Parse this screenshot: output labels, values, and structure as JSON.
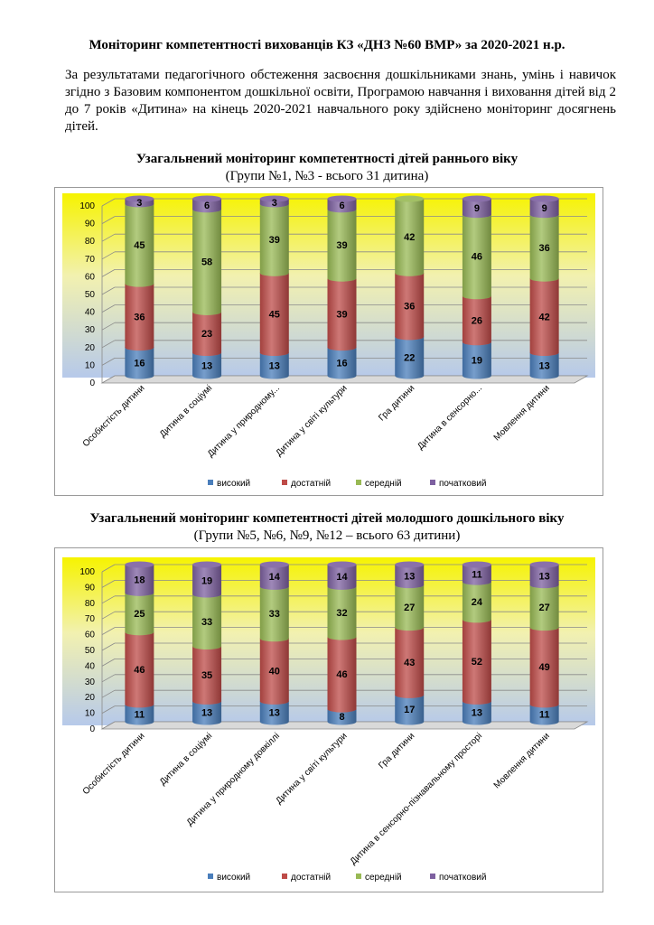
{
  "document": {
    "title": "Моніторинг компетентності  вихованців КЗ «ДНЗ №60 ВМР» за 2020-2021 н.р.",
    "intro": "За результатами педагогічного обстеження засвоєння дошкільниками знань, умінь і навичок згідно з Базовим компонентом дошкільної освіти, Програмою  навчання і виховання дітей від 2 до 7 років «Дитина»  на кінець 2020-2021  навчального року здійснено  моніторинг досягнень дітей."
  },
  "chart_data": [
    {
      "type": "bar",
      "stacked": true,
      "title": "Узагальнений моніторинг компетентності дітей раннього  віку",
      "subtitle": "(Групи №1, №3 - всього 31 дитина)",
      "categories": [
        "Особистість дитини",
        "Дитина в соціумі",
        "Дитина у природному...",
        "Дитина у світі культури",
        "Гра дитини",
        "Дитина в сенсорно...",
        "Мовлення дитини"
      ],
      "series": [
        {
          "name": "високий",
          "color": "#4a7ebb",
          "values": [
            16,
            13,
            13,
            16,
            22,
            19,
            13
          ]
        },
        {
          "name": "достатній",
          "color": "#be4b48",
          "values": [
            36,
            23,
            45,
            39,
            36,
            26,
            42
          ]
        },
        {
          "name": "середній",
          "color": "#98b954",
          "values": [
            45,
            58,
            39,
            39,
            42,
            46,
            36
          ]
        },
        {
          "name": "початковий",
          "color": "#7d60a0",
          "values": [
            3,
            6,
            3,
            6,
            0,
            9,
            9
          ]
        }
      ],
      "ylim": [
        0,
        100
      ],
      "yticks": [
        0,
        10,
        20,
        30,
        40,
        50,
        60,
        70,
        80,
        90,
        100
      ],
      "legend": "bottom"
    },
    {
      "type": "bar",
      "stacked": true,
      "title": "Узагальнений моніторинг компетентності дітей молодшого дошкільного віку",
      "subtitle": "(Групи №5, №6, №9, №12 – всього 63 дитини)",
      "categories": [
        "Особистість дитини",
        "Дитина в соціумі",
        "Дитина у природному довкіллі",
        "Дитина у світі культури",
        "Гра дитини",
        "Дитина в сенсорно-пізнавальному просторі",
        "Мовлення дитини"
      ],
      "series": [
        {
          "name": "високий",
          "color": "#4a7ebb",
          "values": [
            11,
            13,
            13,
            8,
            17,
            13,
            11
          ]
        },
        {
          "name": "достатній",
          "color": "#be4b48",
          "values": [
            46,
            35,
            40,
            46,
            43,
            52,
            49
          ]
        },
        {
          "name": "середній",
          "color": "#98b954",
          "values": [
            25,
            33,
            33,
            32,
            27,
            24,
            27
          ]
        },
        {
          "name": "початковий",
          "color": "#7d60a0",
          "values": [
            18,
            19,
            14,
            14,
            13,
            11,
            13
          ]
        }
      ],
      "ylim": [
        0,
        100
      ],
      "yticks": [
        0,
        10,
        20,
        30,
        40,
        50,
        60,
        70,
        80,
        90,
        100
      ],
      "legend": "bottom"
    }
  ]
}
